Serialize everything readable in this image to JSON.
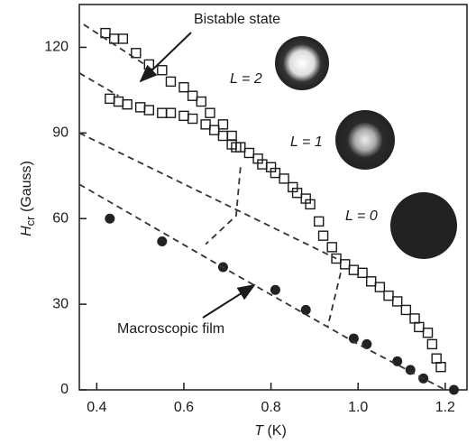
{
  "chart_data": {
    "type": "scatter",
    "x_label": {
      "symbol": "T",
      "unit": "(K)"
    },
    "y_label": {
      "symbol": "H",
      "subscript": "cr",
      "unit": "(Gauss)"
    },
    "xlim": [
      0.36,
      1.25
    ],
    "ylim": [
      0,
      135
    ],
    "xticks": [
      0.4,
      0.6,
      0.8,
      {
        "value": 1,
        "label": "1.0"
      },
      1.2
    ],
    "yticks": [
      0,
      30,
      60,
      90,
      120
    ],
    "annotations": [
      "Bistable state",
      "Macroscopic film",
      "L = 2",
      "L = 1",
      "L = 0"
    ],
    "series": [
      {
        "marker": "square-open",
        "color": "#1a1a1a",
        "x": [
          0.42,
          0.44,
          0.46,
          0.49,
          0.52,
          0.55,
          0.57,
          0.6,
          0.62,
          0.64,
          0.66,
          0.69,
          0.71,
          0.72
        ],
        "values": [
          125,
          123,
          123,
          118,
          114,
          112,
          108,
          106,
          103,
          101,
          97,
          93,
          89,
          85
        ]
      },
      {
        "marker": "square-open",
        "color": "#1a1a1a",
        "x": [
          0.43,
          0.45,
          0.47,
          0.5,
          0.52,
          0.55,
          0.57,
          0.6,
          0.62,
          0.65,
          0.67,
          0.69,
          0.71,
          0.73,
          0.75,
          0.77,
          0.78,
          0.8,
          0.81,
          0.83,
          0.85,
          0.86,
          0.88,
          0.89,
          0.91,
          0.92,
          0.94,
          0.95,
          0.97,
          0.99,
          1.01,
          1.03,
          1.05,
          1.07,
          1.09,
          1.11,
          1.13,
          1.14,
          1.16,
          1.17,
          1.18,
          1.19
        ],
        "values": [
          102,
          101,
          100,
          99,
          98,
          97,
          97,
          96,
          95,
          93,
          91,
          89,
          86,
          85,
          83,
          81,
          79,
          78,
          76,
          74,
          71,
          69,
          67,
          65,
          59,
          54,
          50,
          46,
          44,
          42,
          41,
          38,
          36,
          33,
          31,
          28,
          25,
          22,
          20,
          16,
          11,
          8
        ]
      },
      {
        "marker": "circle-filled",
        "color": "#222222",
        "x": [
          0.43,
          0.55,
          0.69,
          0.81,
          0.88,
          0.99,
          1.02,
          1.09,
          1.12,
          1.15,
          1.22
        ],
        "values": [
          60,
          52,
          43,
          35,
          28,
          18,
          16,
          10,
          7,
          4,
          0
        ]
      },
      {
        "marker": "dashed-line",
        "color": "#333333",
        "x": [
          0.37,
          0.52
        ],
        "values": [
          128,
          113
        ]
      },
      {
        "marker": "dashed-line",
        "color": "#333333",
        "x": [
          0.36,
          0.45
        ],
        "values": [
          111,
          103
        ]
      },
      {
        "marker": "dashed-line",
        "color": "#333333",
        "x": [
          0.36,
          0.95
        ],
        "values": [
          90,
          46
        ]
      },
      {
        "marker": "dashed-line",
        "color": "#333333",
        "x": [
          0.36,
          0.7,
          1,
          1.2
        ],
        "values": [
          72,
          42,
          16,
          0
        ]
      },
      {
        "marker": "dashed-line",
        "color": "#333333",
        "x": [
          0.73,
          0.72,
          0.65
        ],
        "values": [
          78,
          61,
          51
        ]
      },
      {
        "marker": "dashed-line",
        "color": "#333333",
        "x": [
          0.96,
          0.93
        ],
        "values": [
          41,
          22
        ]
      }
    ]
  }
}
